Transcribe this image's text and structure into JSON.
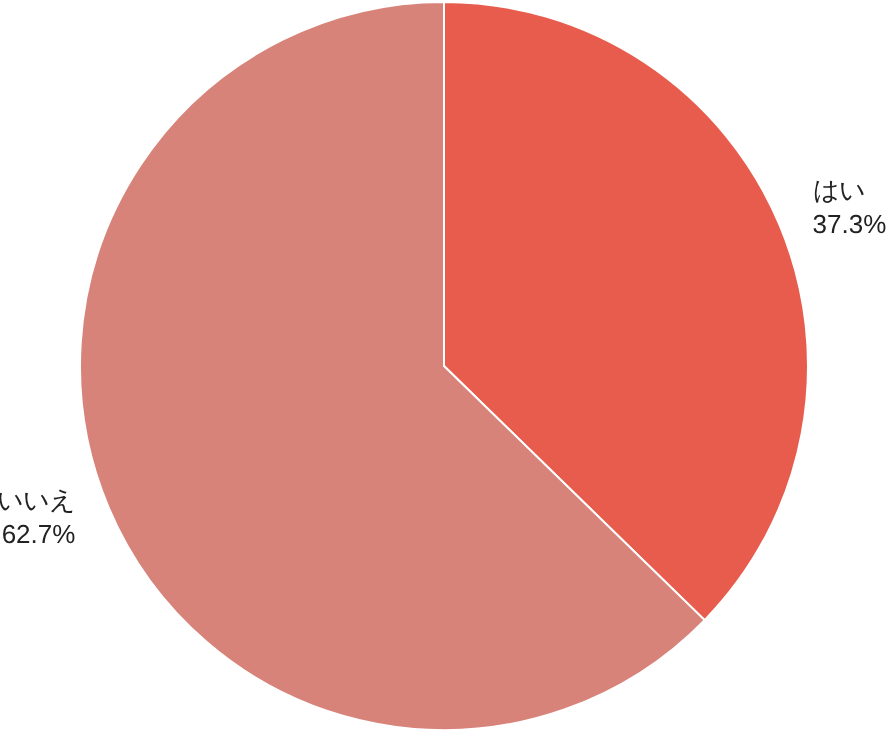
{
  "chart_data": {
    "type": "pie",
    "categories": [
      "はい",
      "いいえ"
    ],
    "values": [
      37.3,
      62.7
    ],
    "value_labels": [
      "37.3%",
      "62.7%"
    ],
    "colors": [
      "#e85c4d",
      "#d8837a"
    ]
  }
}
